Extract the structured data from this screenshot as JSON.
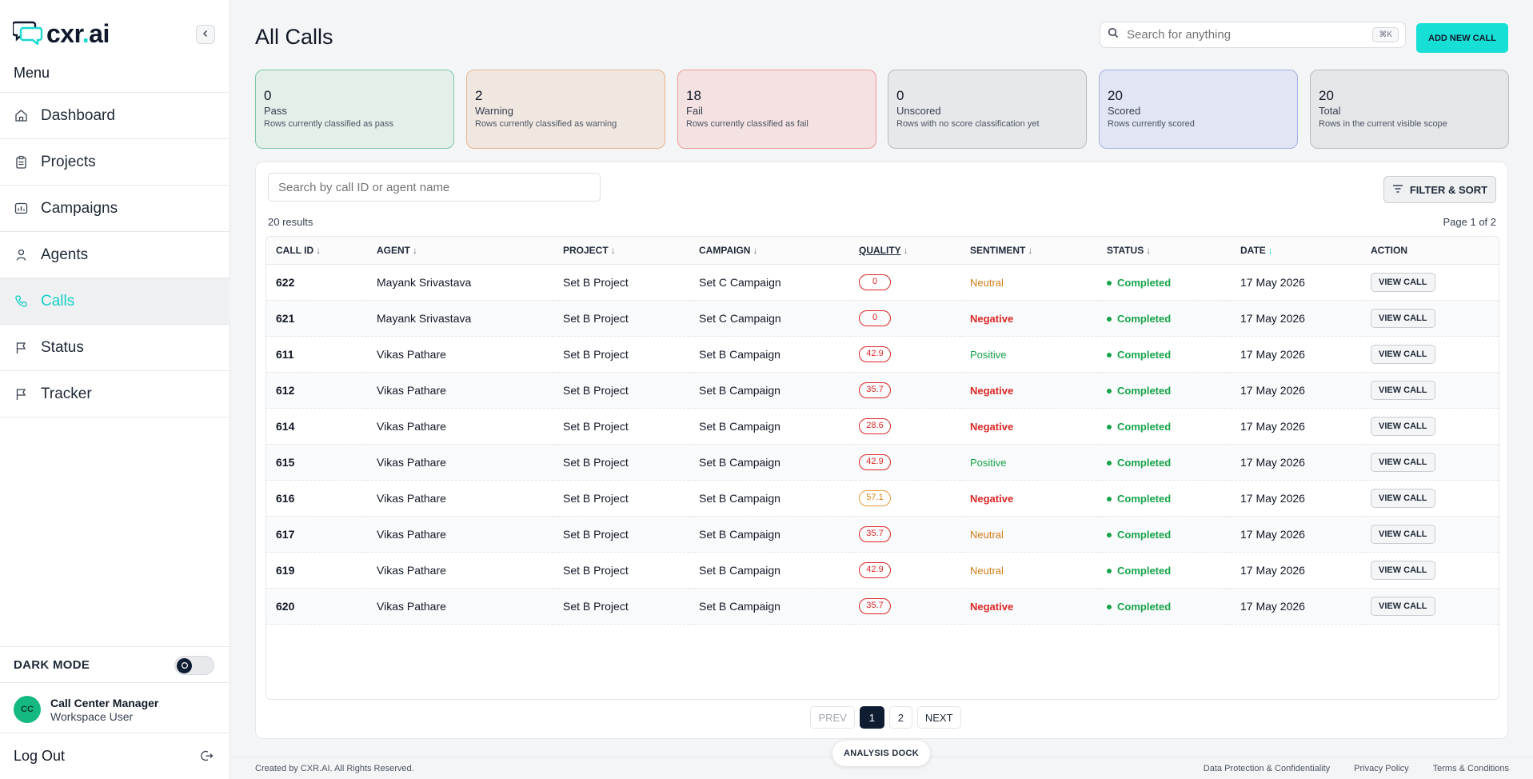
{
  "brand": {
    "name_main": "cxr",
    "name_dot": ".",
    "name_tail": "ai"
  },
  "sidebar": {
    "menu_label": "Menu",
    "items": [
      {
        "label": "Dashboard",
        "icon": "home-icon"
      },
      {
        "label": "Projects",
        "icon": "clipboard-icon"
      },
      {
        "label": "Campaigns",
        "icon": "chart-icon"
      },
      {
        "label": "Agents",
        "icon": "user-icon"
      },
      {
        "label": "Calls",
        "icon": "phone-icon",
        "active": true
      },
      {
        "label": "Status",
        "icon": "flag-icon"
      },
      {
        "label": "Tracker",
        "icon": "flag-icon"
      }
    ],
    "dark_mode_label": "DARK MODE",
    "dark_mode_on": false,
    "user": {
      "initials": "CC",
      "name": "Call Center Manager",
      "role": "Workspace User"
    },
    "logout_label": "Log Out"
  },
  "header": {
    "title": "All Calls",
    "search_placeholder": "Search for anything",
    "shortcut": "⌘K",
    "add_button": "ADD NEW CALL"
  },
  "stats": [
    {
      "value": "0",
      "label": "Pass",
      "desc": "Rows currently classified as pass",
      "bg": "#e3efe9",
      "border": "#7cc7a8"
    },
    {
      "value": "2",
      "label": "Warning",
      "desc": "Rows currently classified as warning",
      "bg": "#f1e7e1",
      "border": "#e6b48c"
    },
    {
      "value": "18",
      "label": "Fail",
      "desc": "Rows currently classified as fail",
      "bg": "#f4e1e2",
      "border": "#ee9a9f"
    },
    {
      "value": "0",
      "label": "Unscored",
      "desc": "Rows with no score classification yet",
      "bg": "#e7e8ea",
      "border": "#b7babf"
    },
    {
      "value": "20",
      "label": "Scored",
      "desc": "Rows currently scored",
      "bg": "#e2e5f3",
      "border": "#a6afe6"
    },
    {
      "value": "20",
      "label": "Total",
      "desc": "Rows in the current visible scope",
      "bg": "#e5e6e8",
      "border": "#b9bcc1"
    }
  ],
  "table": {
    "search_placeholder": "Search by call ID or agent name",
    "filter_label": "FILTER & SORT",
    "results_text": "20 results",
    "page_text": "Page 1 of 2",
    "columns": [
      {
        "label": "CALL ID",
        "arrow": "↓"
      },
      {
        "label": "AGENT",
        "arrow": "↓"
      },
      {
        "label": "PROJECT",
        "arrow": "↓"
      },
      {
        "label": "CAMPAIGN",
        "arrow": "↓"
      },
      {
        "label": "QUALITY",
        "arrow": "↓"
      },
      {
        "label": "SENTIMENT",
        "arrow": "↓"
      },
      {
        "label": "STATUS",
        "arrow": "↓"
      },
      {
        "label": "DATE",
        "arrow": "↓"
      },
      {
        "label": "ACTION",
        "arrow": ""
      }
    ],
    "rows": [
      {
        "id": "622",
        "agent": "Mayank Srivastava",
        "project": "Set B Project",
        "campaign": "Set C Campaign",
        "quality": "0",
        "quality_level": "fail",
        "sentiment": "Neutral",
        "status": "Completed",
        "date": "17 May 2026",
        "action": "VIEW CALL"
      },
      {
        "id": "621",
        "agent": "Mayank Srivastava",
        "project": "Set B Project",
        "campaign": "Set C Campaign",
        "quality": "0",
        "quality_level": "fail",
        "sentiment": "Negative",
        "status": "Completed",
        "date": "17 May 2026",
        "action": "VIEW CALL"
      },
      {
        "id": "611",
        "agent": "Vikas Pathare",
        "project": "Set B Project",
        "campaign": "Set B Campaign",
        "quality": "42.9",
        "quality_level": "fail",
        "sentiment": "Positive",
        "status": "Completed",
        "date": "17 May 2026",
        "action": "VIEW CALL"
      },
      {
        "id": "612",
        "agent": "Vikas Pathare",
        "project": "Set B Project",
        "campaign": "Set B Campaign",
        "quality": "35.7",
        "quality_level": "fail",
        "sentiment": "Negative",
        "status": "Completed",
        "date": "17 May 2026",
        "action": "VIEW CALL"
      },
      {
        "id": "614",
        "agent": "Vikas Pathare",
        "project": "Set B Project",
        "campaign": "Set B Campaign",
        "quality": "28.6",
        "quality_level": "fail",
        "sentiment": "Negative",
        "status": "Completed",
        "date": "17 May 2026",
        "action": "VIEW CALL"
      },
      {
        "id": "615",
        "agent": "Vikas Pathare",
        "project": "Set B Project",
        "campaign": "Set B Campaign",
        "quality": "42.9",
        "quality_level": "fail",
        "sentiment": "Positive",
        "status": "Completed",
        "date": "17 May 2026",
        "action": "VIEW CALL"
      },
      {
        "id": "616",
        "agent": "Vikas Pathare",
        "project": "Set B Project",
        "campaign": "Set B Campaign",
        "quality": "57.1",
        "quality_level": "warn",
        "sentiment": "Negative",
        "status": "Completed",
        "date": "17 May 2026",
        "action": "VIEW CALL"
      },
      {
        "id": "617",
        "agent": "Vikas Pathare",
        "project": "Set B Project",
        "campaign": "Set B Campaign",
        "quality": "35.7",
        "quality_level": "fail",
        "sentiment": "Neutral",
        "status": "Completed",
        "date": "17 May 2026",
        "action": "VIEW CALL"
      },
      {
        "id": "619",
        "agent": "Vikas Pathare",
        "project": "Set B Project",
        "campaign": "Set B Campaign",
        "quality": "42.9",
        "quality_level": "fail",
        "sentiment": "Neutral",
        "status": "Completed",
        "date": "17 May 2026",
        "action": "VIEW CALL"
      },
      {
        "id": "620",
        "agent": "Vikas Pathare",
        "project": "Set B Project",
        "campaign": "Set B Campaign",
        "quality": "35.7",
        "quality_level": "fail",
        "sentiment": "Negative",
        "status": "Completed",
        "date": "17 May 2026",
        "action": "VIEW CALL"
      }
    ]
  },
  "pagination": {
    "prev": "PREV",
    "pages": [
      "1",
      "2"
    ],
    "current": "1",
    "next": "NEXT"
  },
  "dock_label": "ANALYSIS DOCK",
  "footer": {
    "copyright": "Created by CXR.AI. All Rights Reserved.",
    "links": [
      "Data Protection & Confidentiality",
      "Privacy Policy",
      "Terms & Conditions"
    ]
  },
  "colors": {
    "accent": "#16dfd5",
    "navy": "#0f1d33",
    "fail": "#dc2626",
    "warn": "#d98214",
    "success": "#16a34a"
  }
}
